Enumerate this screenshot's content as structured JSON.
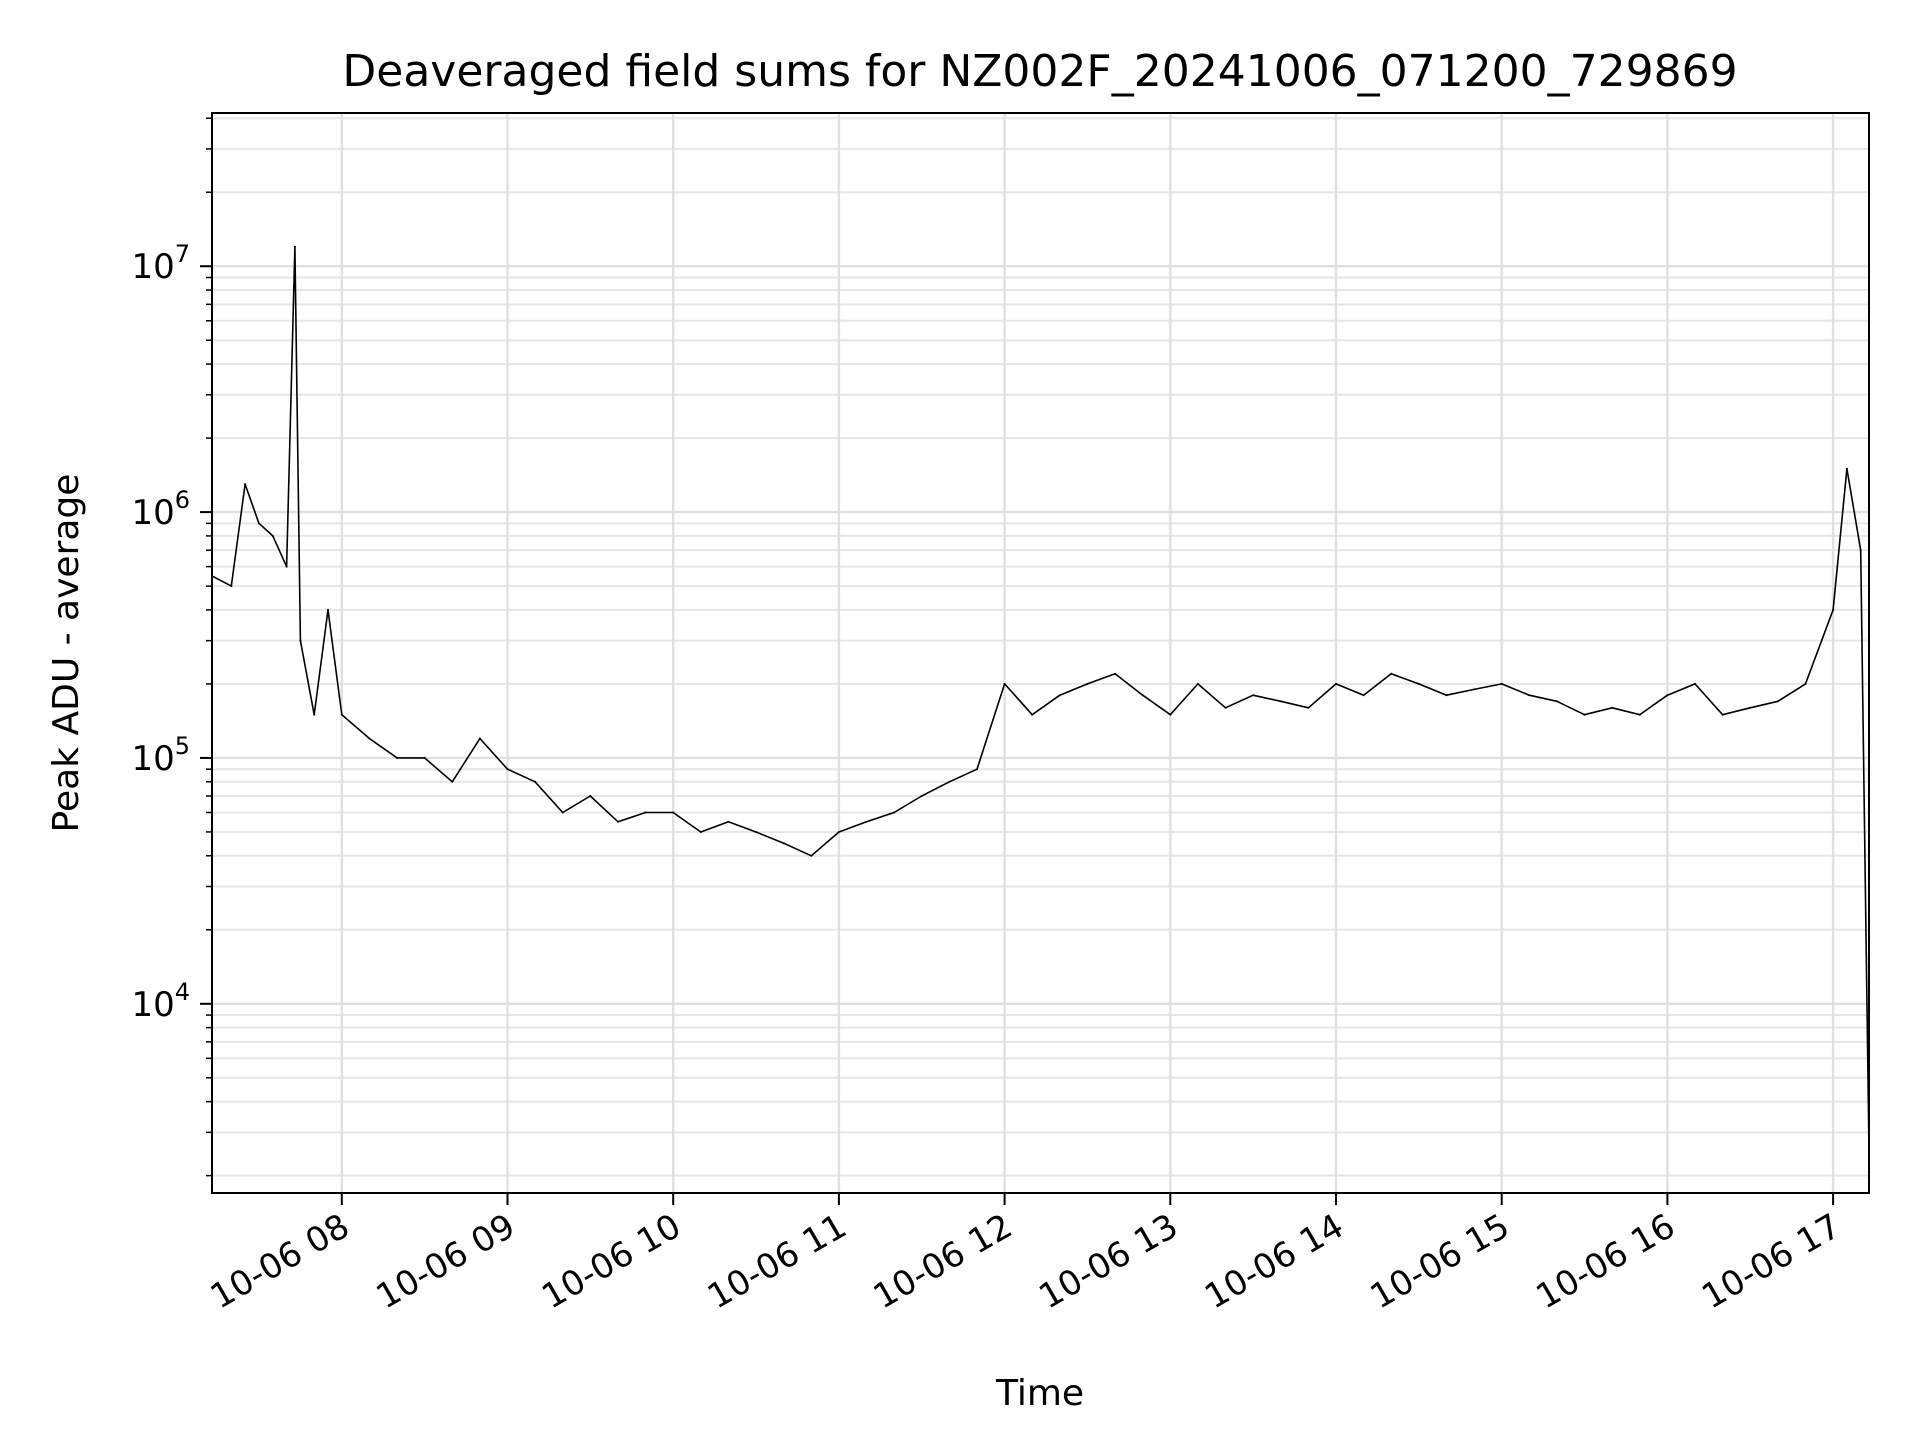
{
  "chart_data": {
    "type": "line",
    "title": "Deaveraged field sums for NZ002F_20241006_071200_729869",
    "xlabel": "Time",
    "ylabel": "Peak ADU - average",
    "yscale": "log",
    "xlim": [
      "10-06 07:13",
      "10-06 17:13"
    ],
    "ylim": [
      1700,
      42000000
    ],
    "grid": true,
    "line_color": "#000000",
    "x_ticks": [
      "10-06 08",
      "10-06 09",
      "10-06 10",
      "10-06 11",
      "10-06 12",
      "10-06 13",
      "10-06 14",
      "10-06 15",
      "10-06 16",
      "10-06 17"
    ],
    "y_ticks": [
      {
        "base": "10",
        "exp": "4"
      },
      {
        "base": "10",
        "exp": "5"
      },
      {
        "base": "10",
        "exp": "6"
      },
      {
        "base": "10",
        "exp": "7"
      }
    ],
    "series": [
      {
        "x": [
          "07:13",
          "07:20",
          "07:25",
          "07:30",
          "07:35",
          "07:40",
          "07:43",
          "07:45",
          "07:50",
          "07:55",
          "08:00",
          "08:10",
          "08:20",
          "08:30",
          "08:40",
          "08:50",
          "09:00",
          "09:10",
          "09:20",
          "09:30",
          "09:40",
          "09:50",
          "10:00",
          "10:10",
          "10:20",
          "10:30",
          "10:40",
          "10:50",
          "11:00",
          "11:10",
          "11:20",
          "11:30",
          "11:40",
          "11:50",
          "12:00",
          "12:10",
          "12:20",
          "12:30",
          "12:40",
          "12:50",
          "13:00",
          "13:10",
          "13:20",
          "13:30",
          "13:40",
          "13:50",
          "14:00",
          "14:10",
          "14:20",
          "14:30",
          "14:40",
          "14:50",
          "15:00",
          "15:10",
          "15:20",
          "15:30",
          "15:40",
          "15:50",
          "16:00",
          "16:10",
          "16:20",
          "16:30",
          "16:40",
          "16:50",
          "17:00",
          "17:05",
          "17:10",
          "17:13"
        ],
        "y": [
          550000,
          500000,
          1300000,
          900000,
          800000,
          600000,
          12000000,
          300000,
          150000,
          400000,
          150000,
          120000,
          100000,
          100000,
          80000,
          120000,
          90000,
          80000,
          60000,
          70000,
          55000,
          60000,
          60000,
          50000,
          55000,
          50000,
          45000,
          40000,
          50000,
          55000,
          60000,
          70000,
          80000,
          90000,
          200000,
          150000,
          180000,
          200000,
          220000,
          180000,
          150000,
          200000,
          160000,
          180000,
          170000,
          160000,
          200000,
          180000,
          220000,
          200000,
          180000,
          190000,
          200000,
          180000,
          170000,
          150000,
          160000,
          150000,
          180000,
          200000,
          150000,
          160000,
          170000,
          200000,
          400000,
          1500000,
          700000,
          2500
        ]
      }
    ]
  }
}
